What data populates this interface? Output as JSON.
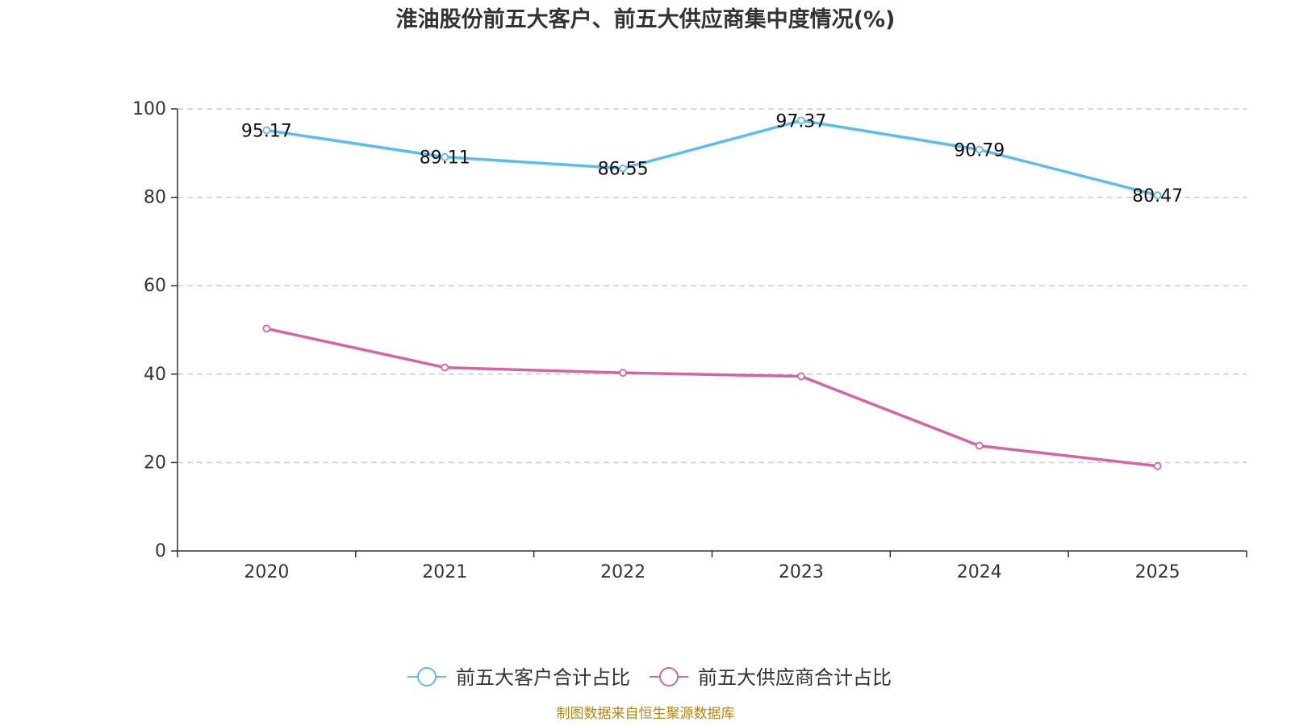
{
  "chart_data": {
    "type": "line",
    "title": "淮油股份前五大客户、前五大供应商集中度情况(%)",
    "categories": [
      "2020",
      "2021",
      "2022",
      "2023",
      "2024",
      "2025"
    ],
    "ylim": [
      0,
      100
    ],
    "yticks": [
      0,
      20,
      40,
      60,
      80,
      100
    ],
    "grid": true,
    "legend_position": "bottom",
    "series": [
      {
        "name": "前五大客户合计占比",
        "color": "#5bbcf0",
        "values": [
          95.17,
          89.11,
          86.55,
          97.37,
          90.79,
          80.47
        ],
        "labels": [
          "95.17",
          "89.11",
          "86.55",
          "97.37",
          "90.79",
          "80.47"
        ]
      },
      {
        "name": "前五大供应商合计占比",
        "color": "#d463a8",
        "values": [
          50.3,
          41.5,
          40.3,
          39.5,
          23.8,
          19.2
        ]
      }
    ],
    "source": "制图数据来自恒生聚源数据库"
  }
}
